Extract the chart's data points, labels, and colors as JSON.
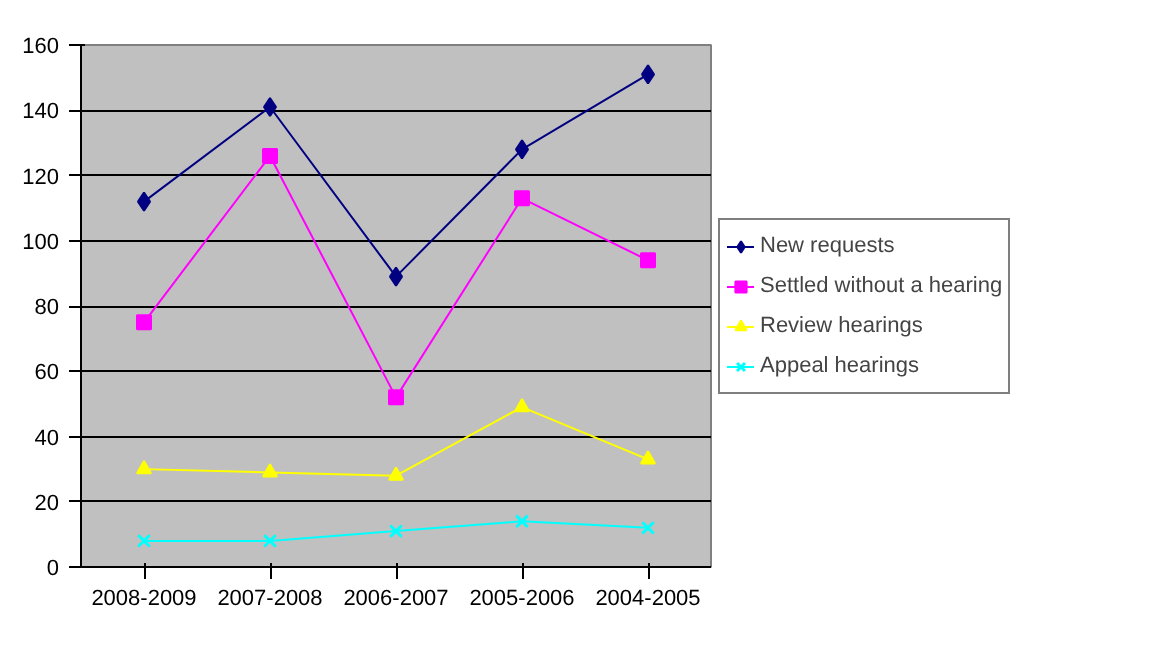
{
  "chart_data": {
    "type": "line",
    "categories": [
      "2008-2009",
      "2007-2008",
      "2006-2007",
      "2005-2006",
      "2004-2005"
    ],
    "ylim": [
      0,
      160
    ],
    "yticks": [
      0,
      20,
      40,
      60,
      80,
      100,
      120,
      140,
      160
    ],
    "grid": "y",
    "legend": "right",
    "series": [
      {
        "name": "New requests",
        "color": "#000080",
        "marker": "diamond",
        "values": [
          112,
          141,
          89,
          128,
          151
        ]
      },
      {
        "name": "Settled without a hearing",
        "color": "#ff00ff",
        "marker": "square",
        "values": [
          75,
          126,
          52,
          113,
          94
        ]
      },
      {
        "name": "Review hearings",
        "color": "#ffff00",
        "marker": "triangle",
        "values": [
          30,
          29,
          28,
          49,
          33
        ]
      },
      {
        "name": "Appeal hearings",
        "color": "#00ffff",
        "marker": "cross",
        "values": [
          8,
          8,
          11,
          14,
          12
        ]
      }
    ]
  }
}
